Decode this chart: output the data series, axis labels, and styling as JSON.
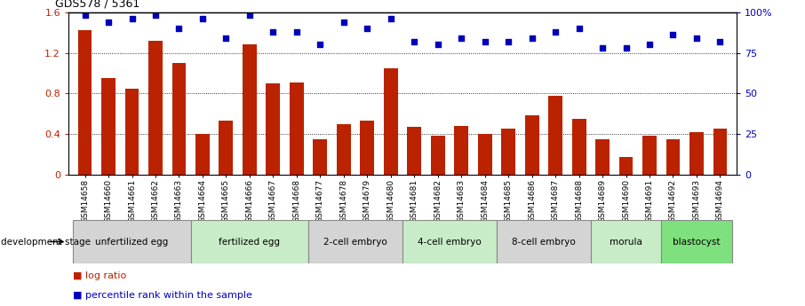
{
  "title": "GDS578 / 5361",
  "samples": [
    "GSM14658",
    "GSM14660",
    "GSM14661",
    "GSM14662",
    "GSM14663",
    "GSM14664",
    "GSM14665",
    "GSM14666",
    "GSM14667",
    "GSM14668",
    "GSM14677",
    "GSM14678",
    "GSM14679",
    "GSM14680",
    "GSM14681",
    "GSM14682",
    "GSM14683",
    "GSM14684",
    "GSM14685",
    "GSM14686",
    "GSM14687",
    "GSM14688",
    "GSM14689",
    "GSM14690",
    "GSM14691",
    "GSM14692",
    "GSM14693",
    "GSM14694"
  ],
  "log_ratio": [
    1.42,
    0.95,
    0.85,
    1.32,
    1.1,
    0.4,
    0.53,
    1.28,
    0.9,
    0.91,
    0.35,
    0.5,
    0.53,
    1.05,
    0.47,
    0.38,
    0.48,
    0.4,
    0.45,
    0.58,
    0.78,
    0.55,
    0.35,
    0.17,
    0.38,
    0.35,
    0.42,
    0.45
  ],
  "percentile": [
    98,
    94,
    96,
    98,
    90,
    96,
    84,
    98,
    88,
    88,
    80,
    94,
    90,
    96,
    82,
    80,
    84,
    82,
    82,
    84,
    88,
    90,
    78,
    78,
    80,
    86,
    84,
    82
  ],
  "stages": [
    {
      "label": "unfertilized egg",
      "start": 0,
      "end": 5,
      "color": "#d4d4d4"
    },
    {
      "label": "fertilized egg",
      "start": 5,
      "end": 10,
      "color": "#c8ecc8"
    },
    {
      "label": "2-cell embryo",
      "start": 10,
      "end": 14,
      "color": "#d4d4d4"
    },
    {
      "label": "4-cell embryo",
      "start": 14,
      "end": 18,
      "color": "#c8ecc8"
    },
    {
      "label": "8-cell embryo",
      "start": 18,
      "end": 22,
      "color": "#d4d4d4"
    },
    {
      "label": "morula",
      "start": 22,
      "end": 25,
      "color": "#c8ecc8"
    },
    {
      "label": "blastocyst",
      "start": 25,
      "end": 28,
      "color": "#7ee07e"
    }
  ],
  "bar_color": "#bb2200",
  "dot_color": "#0000bb",
  "left_ylim": [
    0,
    1.6
  ],
  "right_ylim": [
    0,
    100
  ],
  "left_yticks": [
    0,
    0.4,
    0.8,
    1.2,
    1.6
  ],
  "right_yticks": [
    0,
    25,
    50,
    75,
    100
  ],
  "left_yticklabels": [
    "0",
    "0.4",
    "0.8",
    "1.2",
    "1.6"
  ],
  "right_yticklabels": [
    "0",
    "25",
    "50",
    "75",
    "100%"
  ],
  "legend_log_ratio": "log ratio",
  "legend_percentile": "percentile rank within the sample",
  "dev_stage_label": "development stage"
}
